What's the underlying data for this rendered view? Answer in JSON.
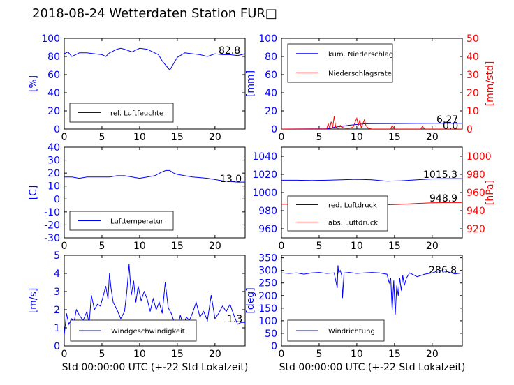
{
  "title": "2018-08-24 Wetterdaten Station FUR□",
  "xlabel": "Std 00:00:00 UTC (+-22 Std Lokalzeit)",
  "colors": {
    "primary": "#0000ff",
    "secondary": "#ff0000",
    "axis": "#000000"
  },
  "chart_data": [
    {
      "id": "humidity",
      "type": "line",
      "title": "",
      "xlabel": "",
      "ylabel": "[%]",
      "xlim": [
        0,
        24
      ],
      "ylim": [
        0,
        100
      ],
      "xticks": [
        0,
        5,
        10,
        15,
        20
      ],
      "yticks": [
        0,
        20,
        40,
        60,
        80,
        100
      ],
      "legend_position": "lower-left",
      "current_value": "82.8",
      "series": [
        {
          "name": "rel. Luftfeuchte",
          "color": "#0000ff",
          "axis": "left",
          "x": [
            0,
            0.5,
            1,
            1.5,
            2,
            3,
            4,
            5,
            5.5,
            6,
            7,
            7.5,
            8,
            9,
            10,
            11,
            12,
            12.5,
            13,
            13.5,
            14,
            14.5,
            15,
            16,
            17,
            18,
            19,
            20,
            21,
            22,
            23,
            24
          ],
          "y": [
            83,
            85,
            80,
            82,
            84,
            84,
            83,
            82,
            80,
            84,
            88,
            89,
            88,
            85,
            89,
            88,
            84,
            82,
            75,
            70,
            65,
            72,
            79,
            84,
            83,
            82,
            80,
            83,
            82,
            82,
            81,
            83
          ]
        }
      ]
    },
    {
      "id": "precipitation",
      "type": "line",
      "title": "",
      "xlabel": "",
      "ylabel": "[mm]",
      "ylabel_right": "[mm/std]",
      "xlim": [
        0,
        24
      ],
      "ylim": [
        0,
        100
      ],
      "ylim_right": [
        0,
        50
      ],
      "xticks": [
        0,
        5,
        10,
        15,
        20
      ],
      "yticks": [
        0,
        20,
        40,
        60,
        80,
        100
      ],
      "yticks_right": [
        0,
        10,
        20,
        30,
        40,
        50
      ],
      "legend_position": "upper-left",
      "current_value": "6.27",
      "current_value_right": "0.0",
      "series": [
        {
          "name": "kum. Niederschlag",
          "color": "#0000ff",
          "axis": "left",
          "x": [
            0,
            6,
            6.5,
            7,
            8,
            9,
            10,
            11,
            12,
            15,
            18,
            20,
            24
          ],
          "y": [
            0,
            0.3,
            0.8,
            2,
            3,
            4.2,
            5,
            5.8,
            6,
            6.1,
            6.2,
            6.27,
            6.27
          ]
        },
        {
          "name": "Niederschlagsrate",
          "color": "#ff0000",
          "axis": "right",
          "x": [
            0,
            6,
            6.2,
            6.4,
            6.6,
            6.8,
            7.0,
            7.2,
            7.4,
            7.6,
            7.8,
            8.0,
            8.5,
            9.0,
            9.5,
            9.8,
            10.0,
            10.2,
            10.4,
            10.6,
            10.8,
            11.0,
            11.2,
            11.5,
            12,
            14.5,
            14.7,
            15,
            18.5,
            18.7,
            19,
            24
          ],
          "y": [
            0,
            0,
            3,
            0.5,
            4,
            1,
            7,
            1,
            0.5,
            0.5,
            2,
            1,
            0.5,
            0.5,
            1,
            4,
            6,
            2,
            5,
            0.5,
            3,
            5,
            2,
            0.5,
            0,
            0,
            2,
            0,
            0,
            1.5,
            0,
            0
          ]
        }
      ]
    },
    {
      "id": "temperature",
      "type": "line",
      "title": "",
      "xlabel": "",
      "ylabel": "[C]",
      "xlim": [
        0,
        24
      ],
      "ylim": [
        -30,
        40
      ],
      "xticks": [
        0,
        5,
        10,
        15,
        20
      ],
      "yticks": [
        -30,
        -20,
        -10,
        0,
        10,
        20,
        30,
        40
      ],
      "legend_position": "lower-left",
      "current_value": "13.0",
      "series": [
        {
          "name": "Lufttemperatur",
          "color": "#0000ff",
          "axis": "left",
          "x": [
            0,
            1,
            2,
            3,
            4,
            5,
            6,
            7,
            8,
            9,
            10,
            11,
            12,
            13,
            13.5,
            14,
            14.5,
            15,
            16,
            17,
            18,
            19,
            20,
            21,
            22,
            23,
            24
          ],
          "y": [
            17,
            17,
            16,
            17,
            17,
            17,
            17,
            18,
            18,
            17,
            16,
            17,
            18,
            21,
            22,
            22,
            20,
            19,
            18,
            17,
            16.5,
            16,
            15,
            14,
            13.5,
            13,
            13
          ]
        }
      ]
    },
    {
      "id": "pressure",
      "type": "line",
      "title": "",
      "xlabel": "",
      "ylabel": "",
      "ylabel_right": "[hPa]",
      "xlim": [
        0,
        24
      ],
      "ylim": [
        950,
        1050
      ],
      "ylim_right": [
        910,
        1010
      ],
      "xticks": [
        0,
        5,
        10,
        15,
        20
      ],
      "yticks": [
        960,
        980,
        1000,
        1020,
        1040
      ],
      "yticks_right": [
        920,
        940,
        960,
        980,
        1000
      ],
      "legend_position": "lower-left",
      "current_value": "1015.3",
      "current_value_right": "948.9",
      "series": [
        {
          "name": "red. Luftdruck",
          "color": "#0000ff",
          "axis": "left",
          "x": [
            0,
            2,
            4,
            6,
            8,
            10,
            12,
            14,
            16,
            18,
            20,
            22,
            24
          ],
          "y": [
            1013.5,
            1013.5,
            1013.2,
            1013.5,
            1014,
            1014.5,
            1014,
            1012.5,
            1013,
            1014,
            1015,
            1015.3,
            1015.3
          ]
        },
        {
          "name": "abs. Luftdruck",
          "color": "#ff0000",
          "axis": "right",
          "x": [
            0,
            2,
            4,
            6,
            8,
            10,
            12,
            14,
            16,
            18,
            20,
            22,
            24
          ],
          "y": [
            947,
            947,
            946.8,
            947,
            947.5,
            948,
            947.8,
            946.5,
            947,
            948,
            948.7,
            948.9,
            948.9
          ]
        }
      ]
    },
    {
      "id": "windspeed",
      "type": "line",
      "title": "",
      "xlabel": "",
      "ylabel": "[m/s]",
      "xlim": [
        0,
        24
      ],
      "ylim": [
        0,
        5
      ],
      "xticks": [
        0,
        5,
        10,
        15,
        20
      ],
      "yticks": [
        0,
        1,
        2,
        3,
        4,
        5
      ],
      "legend_position": "lower-left",
      "current_value": "1.3",
      "series": [
        {
          "name": "Windgeschwindigkeit",
          "color": "#0000ff",
          "axis": "left",
          "x": [
            0,
            0.3,
            0.6,
            1,
            1.3,
            1.6,
            2,
            2.5,
            3,
            3.3,
            3.6,
            4,
            4.4,
            4.8,
            5.2,
            5.5,
            5.8,
            6,
            6.2,
            6.5,
            7,
            7.5,
            8,
            8.3,
            8.6,
            8.9,
            9.2,
            9.5,
            9.8,
            10.2,
            10.6,
            11,
            11.4,
            11.8,
            12.2,
            12.6,
            13,
            13.4,
            13.8,
            14.2,
            14.6,
            15,
            15.4,
            15.8,
            16.2,
            16.6,
            17,
            17.5,
            18,
            18.5,
            19,
            19.5,
            20,
            20.5,
            21,
            21.5,
            22,
            22.5,
            23,
            23.5,
            24
          ],
          "y": [
            0.6,
            1.8,
            1.2,
            1.5,
            1.3,
            2.0,
            1.7,
            1.4,
            1.9,
            1.2,
            2.8,
            2.0,
            2.3,
            2.2,
            2.8,
            3.3,
            2.6,
            4.0,
            3.2,
            2.4,
            2.0,
            1.5,
            1.9,
            3.0,
            4.5,
            2.8,
            3.6,
            2.4,
            3.3,
            2.5,
            3.0,
            2.6,
            1.9,
            2.6,
            2.0,
            2.4,
            1.8,
            3.5,
            2.1,
            1.8,
            1.3,
            0.9,
            1.7,
            1.1,
            1.6,
            1.4,
            1.8,
            2.4,
            1.6,
            1.9,
            1.4,
            2.8,
            1.5,
            1.8,
            2.2,
            1.9,
            2.3,
            1.7,
            1.2,
            1.3,
            1.3
          ]
        }
      ]
    },
    {
      "id": "winddir",
      "type": "line",
      "title": "",
      "xlabel": "",
      "ylabel": "[deg]",
      "xlim": [
        0,
        24
      ],
      "ylim": [
        0,
        360
      ],
      "xticks": [
        0,
        5,
        10,
        15,
        20
      ],
      "yticks": [
        0,
        50,
        100,
        150,
        200,
        250,
        300,
        350
      ],
      "legend_position": "lower-left",
      "current_value": "286.8",
      "series": [
        {
          "name": "Windrichtung",
          "color": "#0000ff",
          "axis": "left",
          "x": [
            0,
            1,
            2,
            3,
            4,
            5,
            6,
            7,
            7.4,
            7.5,
            7.6,
            7.8,
            8,
            8.1,
            8.3,
            9,
            10,
            11,
            12,
            13,
            14,
            14.3,
            14.5,
            14.7,
            14.9,
            15.1,
            15.3,
            15.5,
            15.7,
            15.9,
            16.1,
            16.3,
            16.6,
            17,
            18,
            19,
            20,
            21,
            22,
            23,
            24
          ],
          "y": [
            290,
            288,
            290,
            285,
            290,
            292,
            288,
            290,
            230,
            320,
            290,
            300,
            280,
            190,
            290,
            292,
            288,
            290,
            292,
            290,
            285,
            250,
            270,
            140,
            260,
            125,
            240,
            200,
            270,
            220,
            280,
            240,
            270,
            290,
            275,
            285,
            290,
            300,
            295,
            286,
            290
          ]
        }
      ]
    }
  ]
}
